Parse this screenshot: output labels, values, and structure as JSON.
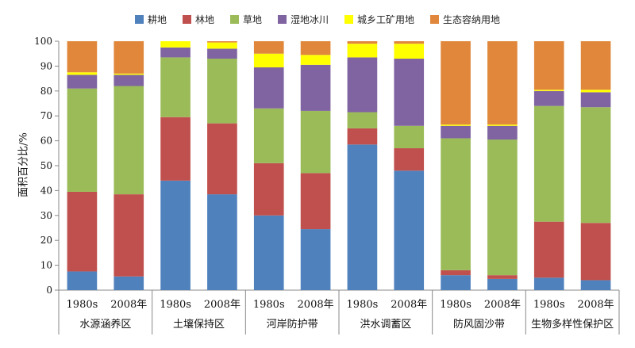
{
  "chart_data": {
    "type": "bar",
    "stacked": true,
    "ylabel": "面积百分比/%",
    "ylim": [
      0,
      100
    ],
    "yticks": [
      0,
      10,
      20,
      30,
      40,
      50,
      60,
      70,
      80,
      90,
      100
    ],
    "legend_position": "top",
    "groups": [
      {
        "name": "水源涵养区",
        "bars": [
          "1980s",
          "2008年"
        ]
      },
      {
        "name": "土壤保持区",
        "bars": [
          "1980s",
          "2008年"
        ]
      },
      {
        "name": "河岸防护带",
        "bars": [
          "1980s",
          "2008年"
        ]
      },
      {
        "name": "洪水调蓄区",
        "bars": [
          "1980s",
          "2008年"
        ]
      },
      {
        "name": "防风固沙带",
        "bars": [
          "1980s",
          "2008年"
        ]
      },
      {
        "name": "生物多样性保护区",
        "bars": [
          "1980s",
          "2008年"
        ]
      }
    ],
    "series": [
      {
        "name": "耕地",
        "color": "#4f81bd",
        "values": [
          7.5,
          5.5,
          44,
          38.5,
          30,
          24.5,
          58.5,
          48,
          6,
          4.5,
          5,
          4
        ]
      },
      {
        "name": "林地",
        "color": "#c0504d",
        "values": [
          32,
          33,
          25.5,
          28.5,
          21,
          22.5,
          6.5,
          9,
          2,
          1.5,
          22.5,
          23
        ]
      },
      {
        "name": "草地",
        "color": "#9bbb59",
        "values": [
          41.5,
          43.5,
          24,
          26,
          22,
          25,
          6.5,
          9,
          53,
          54.5,
          46.5,
          46.5
        ]
      },
      {
        "name": "湿地冰川",
        "color": "#8064a2",
        "values": [
          5.5,
          4.5,
          4,
          4,
          16.5,
          18.5,
          22,
          27,
          5,
          5.5,
          6,
          6
        ]
      },
      {
        "name": "城乡工矿用地",
        "color": "#ffff00",
        "values": [
          1,
          0.5,
          2.5,
          2.5,
          5.5,
          4,
          5.5,
          6,
          0.5,
          0.5,
          0.5,
          1
        ]
      },
      {
        "name": "生态容纳用地",
        "color": "#e0873b",
        "values": [
          12.5,
          13,
          0,
          0.5,
          5,
          5.5,
          1,
          1,
          33.5,
          33.5,
          19.5,
          19.5
        ]
      }
    ]
  }
}
